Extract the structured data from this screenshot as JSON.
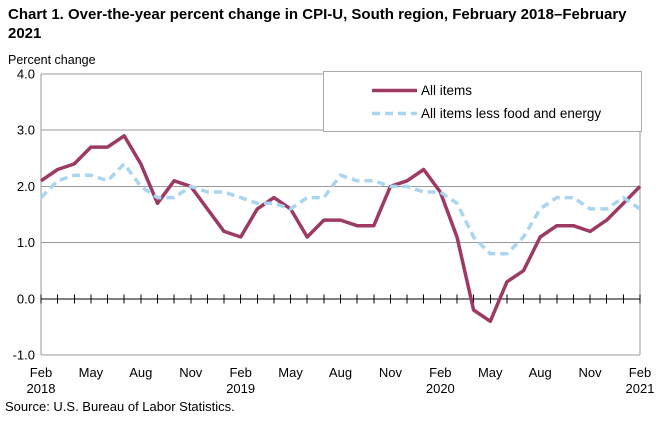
{
  "title": "Chart 1. Over-the-year percent change in CPI-U, South region, February 2018–February 2021",
  "y_axis_title": "Percent change",
  "source": "Source: U.S. Bureau of Labor Statistics.",
  "chart_data": {
    "type": "line",
    "title": "Chart 1. Over-the-year percent change in CPI-U, South region, February 2018–February 2021",
    "ylabel": "Percent change",
    "ylim": [
      -1.0,
      4.0
    ],
    "y_ticks": [
      4.0,
      3.0,
      2.0,
      1.0,
      0.0,
      -1.0
    ],
    "grid": "horizontal",
    "legend_position": "top-right",
    "x": [
      "Feb 2018",
      "Mar 2018",
      "Apr 2018",
      "May 2018",
      "Jun 2018",
      "Jul 2018",
      "Aug 2018",
      "Sep 2018",
      "Oct 2018",
      "Nov 2018",
      "Dec 2018",
      "Jan 2019",
      "Feb 2019",
      "Mar 2019",
      "Apr 2019",
      "May 2019",
      "Jun 2019",
      "Jul 2019",
      "Aug 2019",
      "Sep 2019",
      "Oct 2019",
      "Nov 2019",
      "Dec 2019",
      "Jan 2020",
      "Feb 2020",
      "Mar 2020",
      "Apr 2020",
      "May 2020",
      "Jun 2020",
      "Jul 2020",
      "Aug 2020",
      "Sep 2020",
      "Oct 2020",
      "Nov 2020",
      "Dec 2020",
      "Jan 2021",
      "Feb 2021"
    ],
    "x_ticks": [
      {
        "pos": 0,
        "label": "Feb",
        "year": "2018"
      },
      {
        "pos": 3,
        "label": "May"
      },
      {
        "pos": 6,
        "label": "Aug"
      },
      {
        "pos": 9,
        "label": "Nov"
      },
      {
        "pos": 12,
        "label": "Feb",
        "year": "2019"
      },
      {
        "pos": 15,
        "label": "May"
      },
      {
        "pos": 18,
        "label": "Aug"
      },
      {
        "pos": 21,
        "label": "Nov"
      },
      {
        "pos": 24,
        "label": "Feb",
        "year": "2020"
      },
      {
        "pos": 27,
        "label": "May"
      },
      {
        "pos": 30,
        "label": "Aug"
      },
      {
        "pos": 33,
        "label": "Nov"
      },
      {
        "pos": 36,
        "label": "Feb",
        "year": "2021"
      }
    ],
    "series": [
      {
        "name": "All items",
        "style": "solid",
        "color": "#9d3a63",
        "values": [
          2.1,
          2.3,
          2.4,
          2.7,
          2.7,
          2.9,
          2.4,
          1.7,
          2.1,
          2.0,
          1.6,
          1.2,
          1.1,
          1.6,
          1.8,
          1.6,
          1.1,
          1.4,
          1.4,
          1.3,
          1.3,
          2.0,
          2.1,
          2.3,
          1.9,
          1.1,
          -0.2,
          -0.4,
          0.3,
          0.5,
          1.1,
          1.3,
          1.3,
          1.2,
          1.4,
          1.7,
          2.0
        ]
      },
      {
        "name": "All items less food and energy",
        "style": "dashed",
        "color": "#a9d5f0",
        "values": [
          1.8,
          2.1,
          2.2,
          2.2,
          2.1,
          2.4,
          2.0,
          1.8,
          1.8,
          2.0,
          1.9,
          1.9,
          1.8,
          1.7,
          1.7,
          1.6,
          1.8,
          1.8,
          2.2,
          2.1,
          2.1,
          2.0,
          2.0,
          1.9,
          1.9,
          1.7,
          1.1,
          0.8,
          0.8,
          1.1,
          1.6,
          1.8,
          1.8,
          1.6,
          1.6,
          1.8,
          1.6
        ]
      }
    ],
    "colors": {
      "all_items": "#9d3a63",
      "all_items_less_food_and_energy": "#a9d5f0",
      "gridline": "#9a9a9a",
      "zero_axis": "#000000",
      "legend_border": "#aaaaaa"
    }
  }
}
